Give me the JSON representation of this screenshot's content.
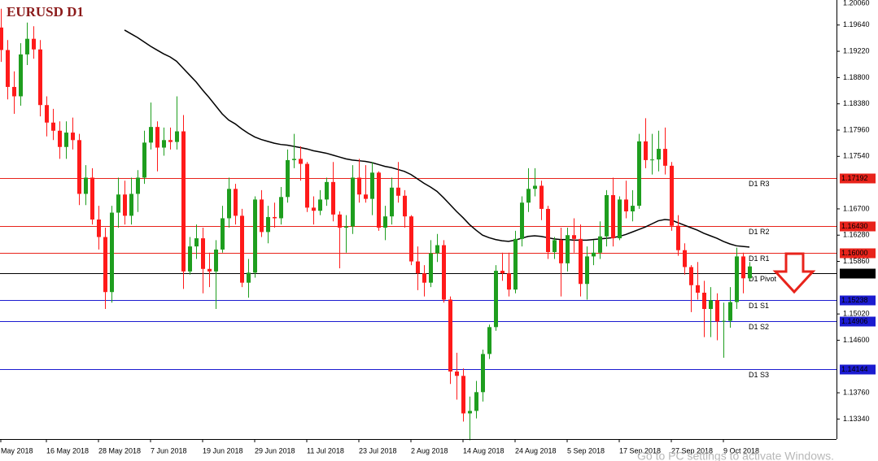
{
  "chart_data": {
    "type": "candlestick",
    "title": "EURUSD D1",
    "watermark": "Go to PC settings to activate Windows.",
    "ylim": [
      1.1302,
      1.2004
    ],
    "yticks": [
      {
        "value": 1.2006,
        "label": "1.20060"
      },
      {
        "value": 1.1964,
        "label": "1.19640"
      },
      {
        "value": 1.1922,
        "label": "1.19220"
      },
      {
        "value": 1.188,
        "label": "1.18800"
      },
      {
        "value": 1.1838,
        "label": "1.18380"
      },
      {
        "value": 1.1796,
        "label": "1.17960"
      },
      {
        "value": 1.1754,
        "label": "1.17540"
      },
      {
        "value": 1.167,
        "label": "1.16700"
      },
      {
        "value": 1.1628,
        "label": "1.16280"
      },
      {
        "value": 1.1586,
        "label": "1.15860"
      },
      {
        "value": 1.1502,
        "label": "1.15020"
      },
      {
        "value": 1.146,
        "label": "1.14600"
      },
      {
        "value": 1.1376,
        "label": "1.13760"
      },
      {
        "value": 1.1334,
        "label": "1.13340"
      }
    ],
    "categories": [
      "May 2018",
      null,
      null,
      null,
      null,
      null,
      null,
      "16 May 2018",
      null,
      null,
      null,
      null,
      null,
      null,
      null,
      "28 May 2018",
      null,
      null,
      null,
      null,
      null,
      null,
      null,
      "7 Jun 2018",
      null,
      null,
      null,
      null,
      null,
      null,
      null,
      "19 Jun 2018",
      null,
      null,
      null,
      null,
      null,
      null,
      null,
      "29 Jun 2018",
      null,
      null,
      null,
      null,
      null,
      null,
      null,
      "11 Jul 2018",
      null,
      null,
      null,
      null,
      null,
      null,
      null,
      "23 Jul 2018",
      null,
      null,
      null,
      null,
      null,
      null,
      null,
      "2 Aug 2018",
      null,
      null,
      null,
      null,
      null,
      null,
      null,
      "14 Aug 2018",
      null,
      null,
      null,
      null,
      null,
      null,
      null,
      "24 Aug 2018",
      null,
      null,
      null,
      null,
      null,
      null,
      null,
      "5 Sep 2018",
      null,
      null,
      null,
      null,
      null,
      null,
      null,
      "17 Sep 2018",
      null,
      null,
      null,
      null,
      null,
      null,
      null,
      "27 Sep 2018",
      null,
      null,
      null,
      null,
      null,
      null,
      null,
      "9 Oct 2018",
      null,
      null,
      null,
      null
    ],
    "up_color": "#1e9e1e",
    "down_color": "#ff1a1a",
    "ohlc": {
      "open": [
        1.196,
        1.1924,
        1.1865,
        1.185,
        1.1917,
        1.1942,
        1.1925,
        1.1836,
        1.1808,
        1.1795,
        1.1769,
        1.1792,
        1.178,
        1.1694,
        1.172,
        1.1653,
        1.1625,
        1.1537,
        1.1664,
        1.1693,
        1.1659,
        1.1694,
        1.172,
        1.1776,
        1.1801,
        1.1768,
        1.178,
        1.1777,
        1.1794,
        1.157,
        1.161,
        1.1623,
        1.1574,
        1.157,
        1.1605,
        1.1655,
        1.1702,
        1.1659,
        1.1552,
        1.1568,
        1.1685,
        1.1633,
        1.1657,
        1.1655,
        1.1689,
        1.1748,
        1.175,
        1.1742,
        1.1672,
        1.1667,
        1.1685,
        1.1713,
        1.1661,
        1.164,
        1.1642,
        1.172,
        1.1693,
        1.1686,
        1.1728,
        1.164,
        1.1658,
        1.1704,
        1.1691,
        1.1658,
        1.1586,
        1.1567,
        1.1552,
        1.1599,
        1.1612,
        1.1525,
        1.141,
        1.1403,
        1.1343,
        1.1347,
        1.1377,
        1.1438,
        1.1481,
        1.1571,
        1.1567,
        1.1541,
        1.1622,
        1.168,
        1.1702,
        1.1707,
        1.167,
        1.1601,
        1.162,
        1.1583,
        1.1628,
        1.1622,
        1.155,
        1.1594,
        1.16,
        1.1626,
        1.1692,
        1.1623,
        1.1685,
        1.1666,
        1.1675,
        1.1778,
        1.1748,
        1.1749,
        1.1766,
        1.1739,
        1.1643,
        1.1604,
        1.1577,
        1.1548,
        1.1536,
        1.151,
        1.1524,
        1.149,
        1.1491,
        1.1521,
        1.1594,
        1.1559
      ],
      "high": [
        1.199,
        1.194,
        1.189,
        1.1935,
        1.1968,
        1.1962,
        1.194,
        1.185,
        1.183,
        1.181,
        1.181,
        1.1816,
        1.179,
        1.174,
        1.1735,
        1.1675,
        1.164,
        1.1675,
        1.172,
        1.1715,
        1.172,
        1.1732,
        1.1795,
        1.184,
        1.181,
        1.18,
        1.18,
        1.185,
        1.182,
        1.1625,
        1.1645,
        1.164,
        1.16,
        1.162,
        1.1675,
        1.172,
        1.171,
        1.167,
        1.159,
        1.169,
        1.17,
        1.1675,
        1.168,
        1.1705,
        1.1765,
        1.179,
        1.177,
        1.1745,
        1.169,
        1.17,
        1.172,
        1.1745,
        1.1666,
        1.166,
        1.174,
        1.175,
        1.174,
        1.1745,
        1.173,
        1.1675,
        1.172,
        1.1745,
        1.17,
        1.166,
        1.161,
        1.158,
        1.162,
        1.163,
        1.162,
        1.153,
        1.144,
        1.1415,
        1.137,
        1.1395,
        1.1445,
        1.1485,
        1.158,
        1.16,
        1.16,
        1.1635,
        1.169,
        1.1735,
        1.1735,
        1.1715,
        1.1675,
        1.1625,
        1.164,
        1.164,
        1.1655,
        1.1645,
        1.161,
        1.162,
        1.165,
        1.17,
        1.172,
        1.169,
        1.1715,
        1.17,
        1.179,
        1.1815,
        1.179,
        1.1795,
        1.18,
        1.1745,
        1.166,
        1.1615,
        1.158,
        1.1585,
        1.1555,
        1.1545,
        1.1535,
        1.152,
        1.1545,
        1.1608,
        1.16,
        1.1585
      ],
      "low": [
        1.1905,
        1.1845,
        1.1822,
        1.1835,
        1.19,
        1.191,
        1.1818,
        1.1786,
        1.178,
        1.175,
        1.175,
        1.1765,
        1.1676,
        1.1676,
        1.1645,
        1.1605,
        1.151,
        1.152,
        1.164,
        1.1645,
        1.1645,
        1.1665,
        1.171,
        1.1765,
        1.173,
        1.1755,
        1.1765,
        1.1765,
        1.1542,
        1.1565,
        1.159,
        1.1535,
        1.1545,
        1.151,
        1.16,
        1.164,
        1.1645,
        1.1545,
        1.1528,
        1.156,
        1.1625,
        1.1615,
        1.164,
        1.1645,
        1.168,
        1.1735,
        1.1715,
        1.1665,
        1.1645,
        1.166,
        1.1675,
        1.165,
        1.1575,
        1.16,
        1.163,
        1.168,
        1.168,
        1.166,
        1.1635,
        1.162,
        1.1645,
        1.168,
        1.164,
        1.158,
        1.154,
        1.153,
        1.1545,
        1.1585,
        1.152,
        1.139,
        1.1365,
        1.133,
        1.13,
        1.1335,
        1.1362,
        1.143,
        1.1475,
        1.1555,
        1.153,
        1.1535,
        1.161,
        1.1665,
        1.169,
        1.1652,
        1.159,
        1.159,
        1.153,
        1.157,
        1.16,
        1.153,
        1.1525,
        1.158,
        1.159,
        1.161,
        1.161,
        1.162,
        1.1655,
        1.165,
        1.167,
        1.1735,
        1.1725,
        1.173,
        1.1725,
        1.1635,
        1.1595,
        1.1565,
        1.1505,
        1.1525,
        1.1465,
        1.1465,
        1.146,
        1.1432,
        1.148,
        1.151,
        1.1535,
        1.1555
      ],
      "close": [
        1.1924,
        1.1865,
        1.185,
        1.1917,
        1.1942,
        1.1925,
        1.1836,
        1.1808,
        1.1795,
        1.1769,
        1.1792,
        1.178,
        1.1694,
        1.172,
        1.1653,
        1.1625,
        1.1537,
        1.1664,
        1.1693,
        1.1659,
        1.1694,
        1.172,
        1.1776,
        1.1801,
        1.1768,
        1.178,
        1.1777,
        1.1794,
        1.157,
        1.161,
        1.1623,
        1.1574,
        1.157,
        1.1605,
        1.1655,
        1.1702,
        1.1659,
        1.1552,
        1.1568,
        1.1685,
        1.1633,
        1.1657,
        1.1655,
        1.1689,
        1.1748,
        1.175,
        1.1742,
        1.1672,
        1.1667,
        1.1685,
        1.1713,
        1.1661,
        1.164,
        1.1642,
        1.172,
        1.1693,
        1.1686,
        1.1728,
        1.164,
        1.1658,
        1.1704,
        1.1691,
        1.1658,
        1.1586,
        1.1567,
        1.1552,
        1.1599,
        1.1612,
        1.1525,
        1.141,
        1.1403,
        1.1343,
        1.1347,
        1.1377,
        1.1438,
        1.1481,
        1.1571,
        1.1567,
        1.1541,
        1.1622,
        1.168,
        1.1702,
        1.1707,
        1.167,
        1.1601,
        1.162,
        1.1583,
        1.1628,
        1.1622,
        1.155,
        1.1594,
        1.16,
        1.1626,
        1.1692,
        1.1623,
        1.1685,
        1.1666,
        1.1675,
        1.1778,
        1.1748,
        1.1749,
        1.1766,
        1.1739,
        1.1643,
        1.1604,
        1.1577,
        1.1548,
        1.1536,
        1.151,
        1.1524,
        1.149,
        1.1491,
        1.1521,
        1.1594,
        1.1559,
        1.1578
      ]
    },
    "moving_average": {
      "color": "#000000",
      "values": [
        null,
        null,
        null,
        null,
        null,
        null,
        null,
        null,
        null,
        null,
        null,
        null,
        null,
        null,
        null,
        null,
        null,
        null,
        null,
        1.1956,
        1.195,
        1.1944,
        1.1937,
        1.193,
        1.1924,
        1.1918,
        1.1913,
        1.1906,
        1.1895,
        1.1884,
        1.1873,
        1.186,
        1.1848,
        1.1835,
        1.1822,
        1.1812,
        1.1806,
        1.1798,
        1.1791,
        1.1785,
        1.1781,
        1.1778,
        1.1775,
        1.1773,
        1.1772,
        1.177,
        1.1768,
        1.1766,
        1.1763,
        1.1761,
        1.1759,
        1.1756,
        1.1753,
        1.175,
        1.1748,
        1.1747,
        1.1746,
        1.1744,
        1.1741,
        1.1738,
        1.1736,
        1.1733,
        1.173,
        1.1725,
        1.1718,
        1.1711,
        1.1705,
        1.1698,
        1.1688,
        1.1677,
        1.1666,
        1.1656,
        1.1645,
        1.1636,
        1.1628,
        1.1624,
        1.1621,
        1.1619,
        1.1618,
        1.162,
        1.1623,
        1.1626,
        1.1627,
        1.1626,
        1.1624,
        1.1622,
        1.1621,
        1.1621,
        1.162,
        1.162,
        1.162,
        1.1621,
        1.1622,
        1.1623,
        1.1624,
        1.1626,
        1.1629,
        1.1633,
        1.1637,
        1.1641,
        1.1646,
        1.1651,
        1.1653,
        1.1652,
        1.1648,
        1.1644,
        1.164,
        1.1636,
        1.1631,
        1.1627,
        1.1623,
        1.1618,
        1.1614,
        1.1611,
        1.161,
        1.1609
      ]
    },
    "levels": [
      {
        "name": "D1 R3",
        "value": 1.17192,
        "color": "#e8231b"
      },
      {
        "name": "D1 R2",
        "value": 1.1643,
        "value_label": "1.16430",
        "color": "#e8231b"
      },
      {
        "name": "D1 R1",
        "value": 1.16,
        "value_label": "1.16000",
        "color": "#e8231b"
      },
      {
        "name": "D1 Pivot",
        "value": 1.15668,
        "color": "#000000"
      },
      {
        "name": "D1 S1",
        "value": 1.15238,
        "color": "#1b1bd0"
      },
      {
        "name": "D1 S2",
        "value": 1.14906,
        "color": "#1b1bd0"
      },
      {
        "name": "D1 S3",
        "value": 1.14144,
        "color": "#1b1bd0"
      }
    ]
  }
}
